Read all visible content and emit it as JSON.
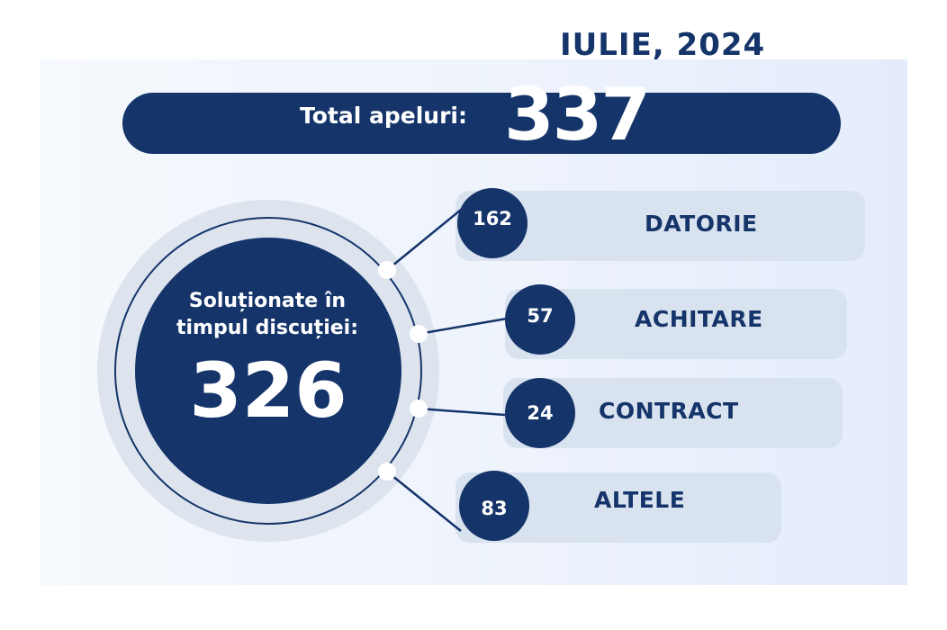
{
  "header": {
    "month": "IULIE, 2024"
  },
  "total": {
    "label": "Total apeluri:",
    "value": "337"
  },
  "resolved": {
    "line1": "Soluționate în",
    "line2": "timpul discuției:",
    "value": "326"
  },
  "categories": [
    {
      "value": "162",
      "label": "DATORIE"
    },
    {
      "value": "57",
      "label": "ACHITARE"
    },
    {
      "value": "24",
      "label": "CONTRACT"
    },
    {
      "value": "83",
      "label": "ALTELE"
    }
  ],
  "colors": {
    "navy": "#14346a",
    "pill": "#d9e2ef",
    "ring": "#dde4ee",
    "background": "#eef3fc"
  }
}
